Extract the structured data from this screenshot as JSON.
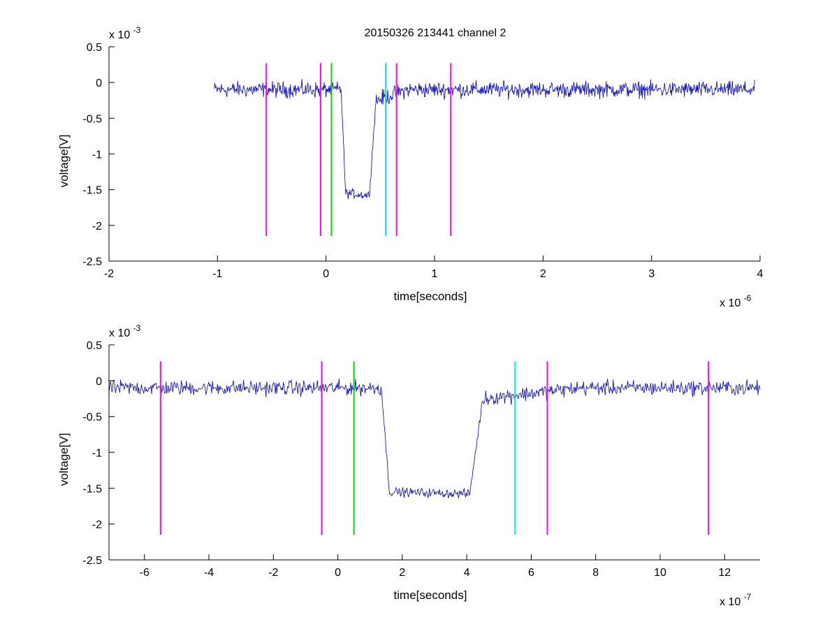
{
  "figure_title": "20150326 213441 channel 2",
  "colors": {
    "signal": "#0000cc",
    "magenta": "#ff00ff",
    "green": "#00dd00",
    "cyan": "#00e5ee",
    "axis": "#000000"
  },
  "chart_data": [
    {
      "type": "line",
      "title": "20150326 213441 channel 2",
      "xlabel": "time[seconds]",
      "ylabel": "voltage[V]",
      "x_exponent_label": "x 10",
      "x_exponent": "-6",
      "y_exponent_label": "x 10",
      "y_exponent": "-3",
      "xlim": [
        -2,
        4
      ],
      "ylim": [
        -2.5,
        0.5
      ],
      "xticks": [
        -2,
        -1,
        0,
        1,
        2,
        3,
        4
      ],
      "yticks": [
        -2.5,
        -2,
        -1.5,
        -1,
        -0.5,
        0,
        0.5
      ],
      "grid": false,
      "signal": {
        "x_range": [
          -1.03,
          3.95
        ],
        "baseline": -0.1,
        "noise_amplitude": 0.3,
        "drop_start": 0.14,
        "drop_bottom": 0.18,
        "rise_start": 0.4,
        "rise_end": 0.46,
        "tail_end": 0.75,
        "tail_level": -0.25,
        "low_level": -1.55
      },
      "vlines": [
        {
          "x": -0.55,
          "color": "magenta",
          "ymin": -2.15,
          "ymax": 0.27
        },
        {
          "x": -0.05,
          "color": "magenta",
          "ymin": -2.15,
          "ymax": 0.27
        },
        {
          "x": 0.05,
          "color": "green",
          "ymin": -2.15,
          "ymax": 0.27
        },
        {
          "x": 0.55,
          "color": "cyan",
          "ymin": -2.15,
          "ymax": 0.27
        },
        {
          "x": 0.65,
          "color": "magenta",
          "ymin": -2.15,
          "ymax": 0.27
        },
        {
          "x": 1.15,
          "color": "magenta",
          "ymin": -2.15,
          "ymax": 0.27
        }
      ]
    },
    {
      "type": "line",
      "title": "",
      "xlabel": "time[seconds]",
      "ylabel": "voltage[V]",
      "x_exponent_label": "x 10",
      "x_exponent": "-7",
      "y_exponent_label": "x 10",
      "y_exponent": "-3",
      "xlim": [
        -7.1,
        13.1
      ],
      "ylim": [
        -2.5,
        0.5
      ],
      "xticks": [
        -6,
        -4,
        -2,
        0,
        2,
        4,
        6,
        8,
        10,
        12
      ],
      "yticks": [
        -2.5,
        -2,
        -1.5,
        -1,
        -0.5,
        0,
        0.5
      ],
      "grid": false,
      "signal": {
        "x_range": [
          -7.1,
          13.1
        ],
        "baseline": -0.1,
        "noise_amplitude": 0.28,
        "drop_start": 1.35,
        "drop_bottom": 1.6,
        "rise_start": 4.1,
        "rise_end": 4.5,
        "tail_end": 7.5,
        "tail_level": -0.25,
        "low_level": -1.55
      },
      "vlines": [
        {
          "x": -5.5,
          "color": "magenta",
          "ymin": -2.15,
          "ymax": 0.27
        },
        {
          "x": -0.5,
          "color": "magenta",
          "ymin": -2.15,
          "ymax": 0.27
        },
        {
          "x": 0.5,
          "color": "green",
          "ymin": -2.15,
          "ymax": 0.27
        },
        {
          "x": 5.5,
          "color": "cyan",
          "ymin": -2.15,
          "ymax": 0.27
        },
        {
          "x": 6.5,
          "color": "magenta",
          "ymin": -2.15,
          "ymax": 0.27
        },
        {
          "x": 11.5,
          "color": "magenta",
          "ymin": -2.15,
          "ymax": 0.27
        }
      ]
    }
  ]
}
